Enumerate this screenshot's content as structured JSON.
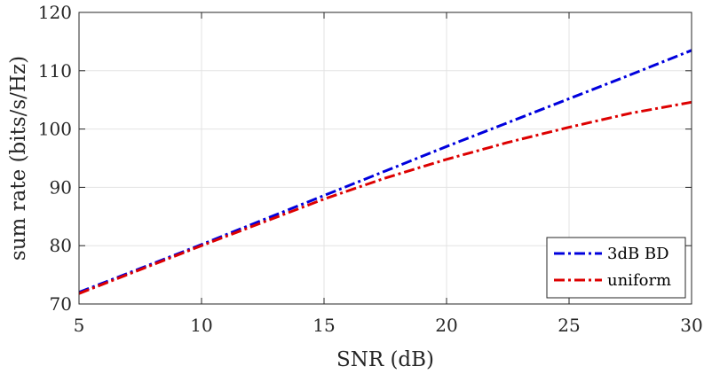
{
  "chart_data": {
    "type": "line",
    "xlabel": "SNR (dB)",
    "ylabel": "sum rate (bits/s/Hz)",
    "xlim": [
      5,
      30
    ],
    "ylim": [
      70,
      120
    ],
    "xticks": [
      5,
      10,
      15,
      20,
      25,
      30
    ],
    "yticks": [
      70,
      80,
      90,
      100,
      110,
      120
    ],
    "grid": true,
    "legend_position": "bottom-right",
    "series": [
      {
        "name": "3dB BD",
        "color": "#0000dd",
        "line_style": "dash-dot",
        "x": [
          5,
          7.5,
          10,
          12.5,
          15,
          17.5,
          20,
          22.5,
          25,
          27.5,
          30
        ],
        "y": [
          72.0,
          76.1,
          80.2,
          84.4,
          88.6,
          92.8,
          97.0,
          101.1,
          105.2,
          109.3,
          113.5
        ]
      },
      {
        "name": "uniform",
        "color": "#dd0000",
        "line_style": "dash-dot",
        "x": [
          5,
          7.5,
          10,
          12.5,
          15,
          17.5,
          20,
          22.5,
          25,
          27.5,
          30
        ],
        "y": [
          71.8,
          75.9,
          80.0,
          84.0,
          88.0,
          91.6,
          94.8,
          97.7,
          100.3,
          102.7,
          104.6
        ]
      }
    ]
  }
}
